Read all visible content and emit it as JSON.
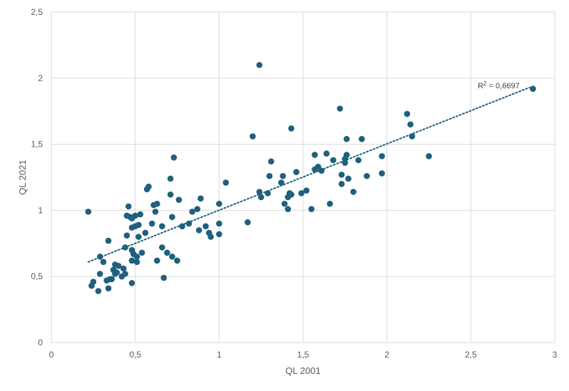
{
  "chart_data": {
    "type": "scatter",
    "title": "",
    "xlabel": "QL 2001",
    "ylabel": "QL 2021",
    "xlim": [
      0,
      3
    ],
    "ylim": [
      0,
      2.5
    ],
    "x_ticks": [
      "0",
      "0,5",
      "1",
      "1,5",
      "2",
      "2,5",
      "3"
    ],
    "y_ticks": [
      "0",
      "0,5",
      "1",
      "1,5",
      "2",
      "2,5"
    ],
    "grid": true,
    "legend": "none",
    "colors": {
      "point": "#1f5f7f",
      "trendline": "#1f5f7f",
      "grid": "#d9d9d9"
    },
    "trendline": {
      "type": "linear",
      "style": "dotted",
      "x_range": [
        0.22,
        2.85
      ],
      "y_range": [
        0.61,
        1.93
      ],
      "label_prefix": "R",
      "label_sup": "2",
      "label_value": " = 0,6697"
    },
    "points": [
      [
        0.22,
        0.99
      ],
      [
        0.24,
        0.43
      ],
      [
        0.25,
        0.46
      ],
      [
        0.28,
        0.39
      ],
      [
        0.29,
        0.52
      ],
      [
        0.29,
        0.65
      ],
      [
        0.31,
        0.61
      ],
      [
        0.33,
        0.47
      ],
      [
        0.34,
        0.41
      ],
      [
        0.34,
        0.77
      ],
      [
        0.35,
        0.48
      ],
      [
        0.36,
        0.48
      ],
      [
        0.37,
        0.55
      ],
      [
        0.38,
        0.52
      ],
      [
        0.38,
        0.59
      ],
      [
        0.39,
        0.53
      ],
      [
        0.4,
        0.58
      ],
      [
        0.42,
        0.5
      ],
      [
        0.43,
        0.56
      ],
      [
        0.44,
        0.52
      ],
      [
        0.44,
        0.72
      ],
      [
        0.45,
        0.81
      ],
      [
        0.45,
        0.96
      ],
      [
        0.46,
        1.03
      ],
      [
        0.47,
        0.95
      ],
      [
        0.48,
        0.7
      ],
      [
        0.48,
        0.45
      ],
      [
        0.48,
        0.87
      ],
      [
        0.48,
        0.94
      ],
      [
        0.48,
        0.62
      ],
      [
        0.49,
        0.67
      ],
      [
        0.5,
        0.88
      ],
      [
        0.5,
        0.96
      ],
      [
        0.51,
        0.61
      ],
      [
        0.51,
        0.65
      ],
      [
        0.52,
        0.8
      ],
      [
        0.52,
        0.89
      ],
      [
        0.53,
        0.97
      ],
      [
        0.54,
        0.68
      ],
      [
        0.56,
        0.83
      ],
      [
        0.57,
        1.16
      ],
      [
        0.58,
        1.18
      ],
      [
        0.6,
        0.9
      ],
      [
        0.61,
        1.04
      ],
      [
        0.62,
        0.99
      ],
      [
        0.63,
        0.62
      ],
      [
        0.63,
        1.05
      ],
      [
        0.66,
        0.72
      ],
      [
        0.66,
        0.88
      ],
      [
        0.67,
        0.49
      ],
      [
        0.69,
        0.68
      ],
      [
        0.71,
        1.24
      ],
      [
        0.71,
        1.12
      ],
      [
        0.72,
        0.95
      ],
      [
        0.72,
        0.65
      ],
      [
        0.73,
        1.4
      ],
      [
        0.75,
        0.62
      ],
      [
        0.76,
        1.08
      ],
      [
        0.78,
        0.88
      ],
      [
        0.82,
        0.9
      ],
      [
        0.84,
        0.99
      ],
      [
        0.87,
        1.01
      ],
      [
        0.88,
        0.85
      ],
      [
        0.89,
        1.09
      ],
      [
        0.92,
        0.88
      ],
      [
        0.94,
        0.83
      ],
      [
        0.95,
        0.8
      ],
      [
        1.0,
        0.9
      ],
      [
        1.0,
        1.05
      ],
      [
        1.0,
        0.82
      ],
      [
        1.04,
        1.21
      ],
      [
        1.17,
        0.91
      ],
      [
        1.2,
        1.56
      ],
      [
        1.24,
        2.1
      ],
      [
        1.24,
        1.14
      ],
      [
        1.25,
        1.1
      ],
      [
        1.29,
        1.13
      ],
      [
        1.3,
        1.26
      ],
      [
        1.31,
        1.37
      ],
      [
        1.37,
        1.21
      ],
      [
        1.38,
        1.26
      ],
      [
        1.39,
        1.05
      ],
      [
        1.41,
        1.01
      ],
      [
        1.41,
        1.1
      ],
      [
        1.42,
        1.13
      ],
      [
        1.43,
        1.62
      ],
      [
        1.43,
        1.12
      ],
      [
        1.46,
        1.29
      ],
      [
        1.49,
        1.13
      ],
      [
        1.52,
        1.15
      ],
      [
        1.55,
        1.01
      ],
      [
        1.57,
        1.42
      ],
      [
        1.57,
        1.31
      ],
      [
        1.59,
        1.33
      ],
      [
        1.61,
        1.3
      ],
      [
        1.64,
        1.43
      ],
      [
        1.66,
        1.05
      ],
      [
        1.68,
        1.38
      ],
      [
        1.72,
        1.77
      ],
      [
        1.73,
        1.2
      ],
      [
        1.73,
        1.27
      ],
      [
        1.75,
        1.36
      ],
      [
        1.75,
        1.39
      ],
      [
        1.76,
        1.54
      ],
      [
        1.76,
        1.42
      ],
      [
        1.77,
        1.24
      ],
      [
        1.8,
        1.14
      ],
      [
        1.83,
        1.38
      ],
      [
        1.85,
        1.54
      ],
      [
        1.88,
        1.26
      ],
      [
        1.97,
        1.28
      ],
      [
        1.97,
        1.41
      ],
      [
        2.12,
        1.73
      ],
      [
        2.14,
        1.65
      ],
      [
        2.15,
        1.56
      ],
      [
        2.25,
        1.41
      ],
      [
        2.87,
        1.92
      ]
    ]
  }
}
